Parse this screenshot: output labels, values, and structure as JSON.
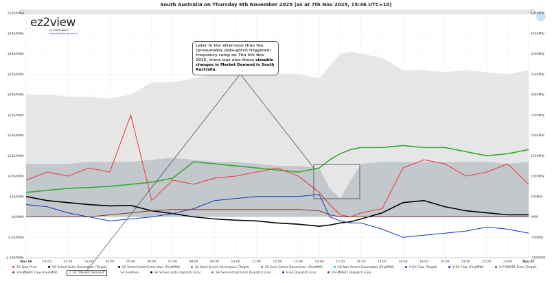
{
  "title": "South Australia on Thursday 6th November 2025 (as at 7th Nov 2025, 15:46 UTC+10)",
  "logo": {
    "text": "ez2view",
    "byline": "by Global-Roam",
    "url": "www.wattclarity.com.au"
  },
  "callout": {
    "plain": "Later in the afternoon than the (presumably data-glitch triggered) frequency ramp on Thu 6th Nov 2025, there was also these ",
    "bold": "sizeable changes in Market Demand in South Australia",
    "end": "."
  },
  "chart_data": {
    "type": "line",
    "title": "South Australia on Thursday 6th November 2025 (as at 7th Nov 2025, 15:46 UTC+10)",
    "x_ticks": [
      "Nov 06",
      "01:00",
      "02:00",
      "03:00",
      "04:00",
      "05:00",
      "06:00",
      "07:00",
      "08:00",
      "09:00",
      "10:00",
      "11:00",
      "12:00",
      "13:00",
      "14:00",
      "15:00",
      "16:00",
      "17:00",
      "18:00",
      "19:00",
      "20:00",
      "21:00",
      "22:00",
      "23:00",
      "Nov 07"
    ],
    "y_left_ticks": [
      "$500/MWh",
      "$450/MWh",
      "$400/MWh",
      "$350/MWh",
      "$300/MWh",
      "$250/MWh",
      "$200/MWh",
      "$150/MWh",
      "$100/MWh",
      "$50/MWh",
      "$0/MWh",
      "$-50/MWh",
      "$-100/MWh"
    ],
    "y_right_ticks": [
      "5000MW",
      "4500MW",
      "4000MW",
      "3500MW",
      "3000MW",
      "2500MW",
      "2000MW",
      "1500MW",
      "1000MW",
      "500MW",
      "0MW",
      "-500MW",
      "-1000MW"
    ],
    "ylim_left": [
      -100,
      500
    ],
    "ylim_right": [
      -1000,
      5000
    ],
    "grid": true,
    "legend_placement": "bottom",
    "x_hours": [
      0,
      1,
      2,
      3,
      4,
      5,
      6,
      7,
      8,
      9,
      10,
      11,
      12,
      13,
      14,
      14.5,
      15,
      15.5,
      16,
      17,
      18,
      19,
      20,
      21,
      22,
      23,
      24
    ],
    "series": [
      {
        "name": "SA AvailGen",
        "axis": "right",
        "kind": "area",
        "color": "#e6e6e6",
        "values": [
          3000,
          3000,
          2950,
          2950,
          2900,
          3000,
          3300,
          3300,
          3400,
          3500,
          3500,
          3550,
          3500,
          3500,
          3400,
          3700,
          4000,
          4050,
          4000,
          3900,
          3600,
          3600,
          3550,
          3600,
          3550,
          3500,
          3600
        ]
      },
      {
        "name": "SA \"Market Demand\"",
        "axis": "right",
        "kind": "area",
        "color": "#c3c8cc",
        "values": [
          1300,
          1300,
          1300,
          1350,
          1350,
          1350,
          1400,
          1450,
          1400,
          1350,
          1350,
          1300,
          1250,
          1250,
          1200,
          700,
          450,
          900,
          1300,
          1350,
          1350,
          1350,
          1350,
          1350,
          1350,
          1300,
          1350
        ]
      },
      {
        "name": "SA Semi-Sched Generation (FinalMW)",
        "axis": "right",
        "kind": "line",
        "color": "#33aa33",
        "values": [
          600,
          650,
          700,
          720,
          750,
          800,
          850,
          950,
          1350,
          1300,
          1250,
          1200,
          1150,
          1100,
          1200,
          1400,
          1550,
          1650,
          1700,
          1700,
          1750,
          1700,
          1700,
          1600,
          1500,
          1550,
          1650
        ]
      },
      {
        "name": "SA Sched Units Generation (FinalMW)",
        "axis": "right",
        "kind": "line",
        "color": "#000000",
        "values": [
          500,
          400,
          350,
          300,
          270,
          280,
          150,
          80,
          0,
          -50,
          -80,
          -100,
          -150,
          -180,
          -230,
          -200,
          -150,
          -120,
          -50,
          100,
          350,
          400,
          250,
          150,
          100,
          50,
          50
        ]
      },
      {
        "name": "V-SA Flow (FinalMW)",
        "axis": "right",
        "kind": "line",
        "color": "#1133bb",
        "values": [
          300,
          250,
          100,
          0,
          -100,
          -50,
          0,
          80,
          200,
          400,
          450,
          500,
          500,
          500,
          550,
          0,
          -100,
          -150,
          -150,
          -300,
          -500,
          -450,
          -400,
          -350,
          -250,
          -300,
          -400
        ]
      },
      {
        "name": "V-V-MNSP1 Flow (FinalMW)",
        "axis": "right",
        "kind": "line",
        "color": "#7a3b2e",
        "values": [
          0,
          0,
          0,
          0,
          50,
          100,
          150,
          180,
          180,
          180,
          180,
          180,
          180,
          180,
          150,
          50,
          0,
          0,
          0,
          0,
          0,
          0,
          0,
          0,
          0,
          0,
          0
        ]
      },
      {
        "name": "SA Spot Price",
        "axis": "left",
        "kind": "line",
        "color": "#ee3333",
        "values": [
          90,
          110,
          100,
          120,
          110,
          250,
          40,
          90,
          80,
          95,
          100,
          110,
          120,
          100,
          60,
          30,
          5,
          0,
          10,
          20,
          120,
          140,
          130,
          100,
          110,
          130,
          80
        ]
      }
    ]
  },
  "legend": [
    {
      "label": "SA Spot Price",
      "color": "#ee3333"
    },
    {
      "label": "SA Sched Units Generation (Target)",
      "color": "#000000"
    },
    {
      "label": "SA Sched Units Generation (FinalMW)",
      "color": "#000000"
    },
    {
      "label": "SA Semi-Sched Generation (Target)",
      "color": "#33aa33"
    },
    {
      "label": "SA Semi-Sched Generation (FinalMW)",
      "color": "#33aa33"
    },
    {
      "label": "SA Non-Sched Generation (FinalMW)",
      "color": "#22bbdd"
    },
    {
      "label": "V-SA Flow (Target)",
      "color": "#1133bb"
    },
    {
      "label": "V-SA Flow (FinalMW)",
      "color": "#1133bb"
    },
    {
      "label": "V-V-MNSP1 Flow (Target)",
      "color": "#7a3b2e"
    },
    {
      "label": "V-V-MNSP1 Flow (FinalMW)",
      "color": "#7a3b2e"
    },
    {
      "label": "SA \"Market Demand\"",
      "color": "#cccccc"
    },
    {
      "label": "SA AvailGen",
      "color": "#eeeeee"
    },
    {
      "label": "SA Sched Units Dispatch Error",
      "color": "#000000"
    },
    {
      "label": "SA Semi-Sched Units Dispatch Error",
      "color": "#33aa33"
    },
    {
      "label": "V-SA Dispatch Error",
      "color": "#1133bb"
    },
    {
      "label": "V-V-MNSP1 Dispatch Error",
      "color": "#7a3b2e"
    }
  ]
}
